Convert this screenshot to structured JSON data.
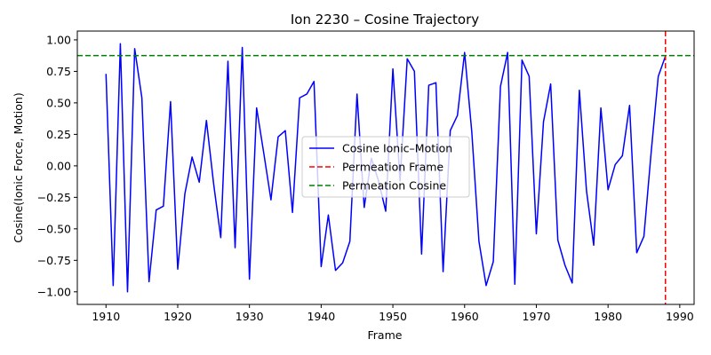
{
  "chart_data": {
    "type": "line",
    "title": "Ion 2230 – Cosine Trajectory",
    "xlabel": "Frame",
    "ylabel": "Cosine(Ionic Force, Motion)",
    "xlim": [
      1906,
      1992
    ],
    "ylim": [
      -1.1,
      1.07
    ],
    "xticks": [
      1910,
      1920,
      1930,
      1940,
      1950,
      1960,
      1970,
      1980,
      1990
    ],
    "yticks": [
      -1.0,
      -0.75,
      -0.5,
      -0.25,
      0.0,
      0.25,
      0.5,
      0.75,
      1.0
    ],
    "yticklabels": [
      "−1.00",
      "−0.75",
      "−0.50",
      "−0.25",
      "0.00",
      "0.25",
      "0.50",
      "0.75",
      "1.00"
    ],
    "grid": false,
    "legend_position": "center",
    "series": [
      {
        "name": "Cosine Ionic–Motion",
        "color": "#0000ff",
        "style": "solid",
        "x": [
          1910,
          1911,
          1912,
          1913,
          1914,
          1915,
          1916,
          1917,
          1918,
          1919,
          1920,
          1921,
          1922,
          1923,
          1924,
          1925,
          1926,
          1927,
          1928,
          1929,
          1930,
          1931,
          1932,
          1933,
          1934,
          1935,
          1936,
          1937,
          1938,
          1939,
          1940,
          1941,
          1942,
          1943,
          1944,
          1945,
          1946,
          1947,
          1948,
          1949,
          1950,
          1951,
          1952,
          1953,
          1954,
          1955,
          1956,
          1957,
          1958,
          1959,
          1960,
          1961,
          1962,
          1963,
          1964,
          1965,
          1966,
          1967,
          1968,
          1969,
          1970,
          1971,
          1972,
          1973,
          1974,
          1975,
          1976,
          1977,
          1978,
          1979,
          1980,
          1981,
          1982,
          1983,
          1984,
          1985,
          1986,
          1987,
          1988
        ],
        "values": [
          0.73,
          -0.95,
          0.97,
          -1.0,
          0.93,
          0.54,
          -0.92,
          -0.35,
          -0.32,
          0.51,
          -0.82,
          -0.22,
          0.07,
          -0.13,
          0.36,
          -0.14,
          -0.57,
          0.83,
          -0.65,
          0.94,
          -0.9,
          0.46,
          0.1,
          -0.27,
          0.23,
          0.28,
          -0.37,
          0.54,
          0.57,
          0.67,
          -0.8,
          -0.39,
          -0.83,
          -0.77,
          -0.6,
          0.57,
          -0.33,
          0.06,
          -0.12,
          -0.36,
          0.77,
          -0.12,
          0.85,
          0.75,
          -0.7,
          0.64,
          0.66,
          -0.84,
          0.28,
          0.4,
          0.9,
          0.27,
          -0.6,
          -0.95,
          -0.76,
          0.63,
          0.9,
          -0.94,
          0.84,
          0.71,
          -0.54,
          0.35,
          0.65,
          -0.59,
          -0.79,
          -0.93,
          0.6,
          -0.2,
          -0.63,
          0.46,
          -0.19,
          0.01,
          0.08,
          0.48,
          -0.69,
          -0.56,
          0.1,
          0.71,
          0.87
        ]
      },
      {
        "name": "Permeation Frame",
        "color": "#ff0000",
        "style": "dashed",
        "orientation": "vertical",
        "value": 1988
      },
      {
        "name": "Permeation Cosine",
        "color": "#008000",
        "style": "dashed",
        "orientation": "horizontal",
        "value": 0.875
      }
    ]
  }
}
